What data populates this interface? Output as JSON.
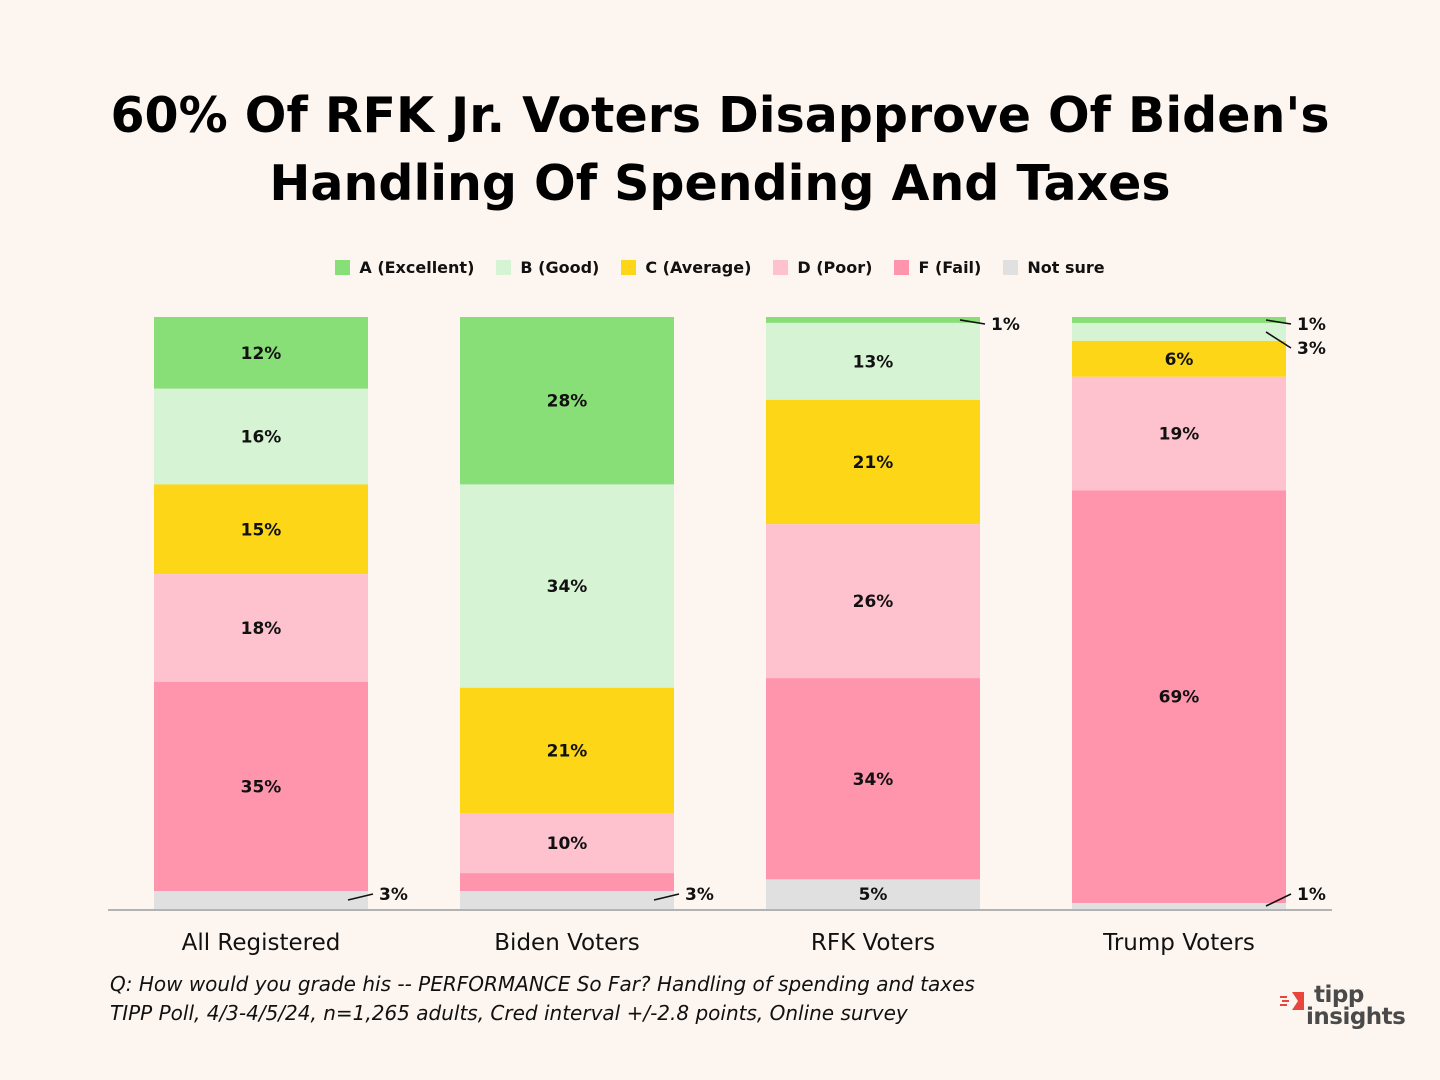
{
  "title": {
    "line1": "60% Of RFK Jr. Voters Disapprove Of Biden's",
    "line2": "Handling Of Spending And Taxes"
  },
  "colors": {
    "background": "#fdf5ef",
    "excellent": "#88df78",
    "good": "#d6f4d4",
    "average": "#fdd617",
    "poor": "#fec2cf",
    "fail": "#ff94ad",
    "not_sure": "#e0e0e0",
    "axis": "#b3b3b3",
    "logo_red": "#e8453c"
  },
  "chart_data": {
    "type": "bar",
    "stacked": true,
    "categories": [
      "All Registered",
      "Biden Voters",
      "RFK Voters",
      "Trump Voters"
    ],
    "series": [
      {
        "name": "A (Excellent)",
        "values": [
          12,
          28,
          1,
          1
        ]
      },
      {
        "name": "B (Good)",
        "values": [
          16,
          34,
          13,
          3
        ]
      },
      {
        "name": "C (Average)",
        "values": [
          15,
          21,
          21,
          6
        ]
      },
      {
        "name": "D (Poor)",
        "values": [
          18,
          10,
          26,
          19
        ]
      },
      {
        "name": "F (Fail)",
        "values": [
          35,
          3,
          34,
          69
        ]
      },
      {
        "name": "Not sure",
        "values": [
          3,
          3,
          5,
          1
        ]
      }
    ],
    "labels": [
      [
        "12%",
        "28%",
        "1%",
        "1%"
      ],
      [
        "16%",
        "34%",
        "13%",
        "3%"
      ],
      [
        "15%",
        "21%",
        "21%",
        "6%"
      ],
      [
        "18%",
        "10%",
        "26%",
        "19%"
      ],
      [
        "35%",
        "",
        "34%",
        "69%"
      ],
      [
        "3%",
        "3%",
        "5%",
        "1%"
      ]
    ],
    "title": "60% Of RFK Jr. Voters Disapprove Of Biden's Handling Of Spending And Taxes",
    "xlabel": "",
    "ylabel": "",
    "ylim": [
      0,
      100
    ],
    "legend": "top-center",
    "grid": false
  },
  "footnote": {
    "line1": "Q:  How would you grade his -- PERFORMANCE So Far? Handling  of spending and taxes",
    "line2": "TIPP Poll, 4/3-4/5/24, n=1,265 adults, Cred interval +/-2.8 points, Online survey"
  },
  "logo": {
    "line1": "tipp",
    "line2": "insights",
    "icon": "tipp-logo-icon"
  }
}
